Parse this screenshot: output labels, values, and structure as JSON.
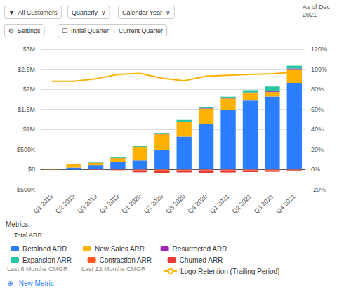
{
  "chart_data": {
    "type": "bar",
    "stacked": true,
    "categories": [
      "Q1 2019",
      "Q2 2019",
      "Q3 2019",
      "Q4 2019",
      "Q1 2020",
      "Q2 2020",
      "Q3 2020",
      "Q4 2020",
      "Q1 2021",
      "Q2 2021",
      "Q3 2021",
      "Q4 2021"
    ],
    "series": [
      {
        "name": "Retained ARR",
        "color": "#2B7FFF",
        "values": [
          0,
          50000,
          110000,
          185000,
          230000,
          480000,
          820000,
          1130000,
          1490000,
          1720000,
          1820000,
          2160000
        ]
      },
      {
        "name": "New Sales ARR",
        "color": "#FFB300",
        "values": [
          5000,
          80000,
          60000,
          100000,
          330000,
          400000,
          360000,
          390000,
          280000,
          190000,
          110000,
          340000
        ]
      },
      {
        "name": "Resurrected ARR",
        "color": "#9C27B0",
        "values": [
          0,
          0,
          2000,
          5000,
          5000,
          8000,
          10000,
          10000,
          10000,
          12000,
          18000,
          18000
        ]
      },
      {
        "name": "Expansion ARR",
        "color": "#26C6A0",
        "values": [
          0,
          5000,
          25000,
          20000,
          18000,
          20000,
          45000,
          28000,
          35000,
          55000,
          120000,
          70000
        ]
      },
      {
        "name": "Contraction ARR",
        "color": "#FF5722",
        "values": [
          0,
          0,
          -4000,
          -8000,
          -18000,
          -25000,
          -18000,
          -18000,
          -18000,
          -18000,
          -18000,
          -18000
        ]
      },
      {
        "name": "Churned ARR",
        "color": "#E53935",
        "values": [
          0,
          0,
          -5000,
          -8000,
          -50000,
          -70000,
          -55000,
          -65000,
          -55000,
          -45000,
          -38000,
          -28000
        ]
      },
      {
        "name": "Logo Retention (Trailing Period)",
        "type": "line",
        "axis": "y2",
        "color": "#FFB300",
        "values": [
          0.88,
          0.88,
          0.905,
          0.948,
          0.958,
          0.91,
          0.885,
          0.93,
          0.94,
          0.948,
          0.955,
          0.97
        ]
      }
    ],
    "ylim": [
      -500000,
      3000000
    ],
    "yticks": [
      {
        "value": -500000,
        "label": "-$500K"
      },
      {
        "value": 0,
        "label": "$0"
      },
      {
        "value": 500000,
        "label": "$500K"
      },
      {
        "value": 1000000,
        "label": "$1M"
      },
      {
        "value": 1500000,
        "label": "$1.5M"
      },
      {
        "value": 2000000,
        "label": "$2M"
      },
      {
        "value": 2500000,
        "label": "$2.5M"
      },
      {
        "value": 3000000,
        "label": "$3M"
      }
    ],
    "y2lim": [
      -0.2,
      1.2
    ],
    "y2ticks": [
      {
        "value": -0.2,
        "label": "-20%"
      },
      {
        "value": 0.0,
        "label": "0%"
      },
      {
        "value": 0.2,
        "label": "20%"
      },
      {
        "value": 0.4,
        "label": "40%"
      },
      {
        "value": 0.6,
        "label": "60%"
      },
      {
        "value": 0.8,
        "label": "80%"
      },
      {
        "value": 1.0,
        "label": "100%"
      },
      {
        "value": 1.2,
        "label": "120%"
      }
    ],
    "grid": true,
    "legend": "bottom",
    "annotations": [
      "▼  All Customers",
      "Quarterly  ∨",
      "Calendar Year  ∨",
      "As of Dec\n2021",
      "⚙  Settings",
      "☐  Initial Quarter → Current Quarter",
      "Metrics:",
      "Total ARR",
      "Last 6 Months CMGR",
      "Last 12 Months CMGR",
      "⊕   New Metric"
    ]
  }
}
